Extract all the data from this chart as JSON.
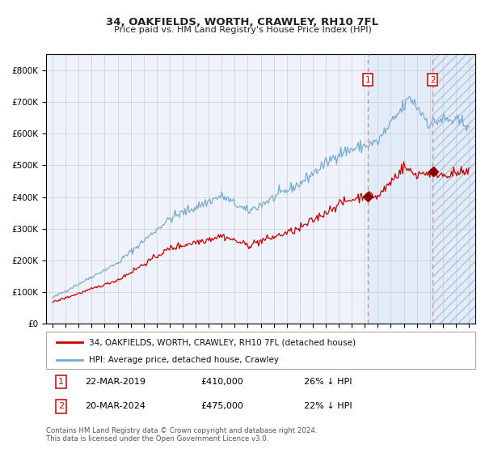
{
  "title1": "34, OAKFIELDS, WORTH, CRAWLEY, RH10 7FL",
  "title2": "Price paid vs. HM Land Registry's House Price Index (HPI)",
  "legend1": "34, OAKFIELDS, WORTH, CRAWLEY, RH10 7FL (detached house)",
  "legend2": "HPI: Average price, detached house, Crawley",
  "transaction1_date": "22-MAR-2019",
  "transaction1_price": "£410,000",
  "transaction1_hpi": "26% ↓ HPI",
  "transaction2_date": "20-MAR-2024",
  "transaction2_price": "£475,000",
  "transaction2_hpi": "22% ↓ HPI",
  "footer": "Contains HM Land Registry data © Crown copyright and database right 2024.\nThis data is licensed under the Open Government Licence v3.0.",
  "hpi_color": "#7aaad0",
  "price_color": "#cc0000",
  "marker_color": "#880000",
  "vline_color": "#ee8888",
  "bg_shade_color": "#ddeeff",
  "grid_color": "#cccccc",
  "ax_bg_color": "#eef3fb",
  "ylim_max": 850000,
  "transaction1_year": 2019.22,
  "transaction2_year": 2024.22,
  "xmin": 1994.5,
  "xmax": 2027.5
}
